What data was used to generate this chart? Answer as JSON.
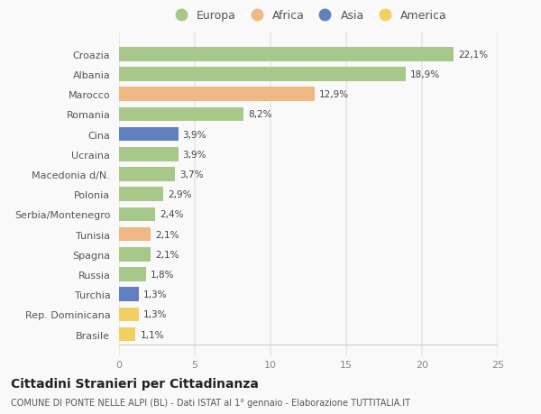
{
  "categories": [
    "Brasile",
    "Rep. Dominicana",
    "Turchia",
    "Russia",
    "Spagna",
    "Tunisia",
    "Serbia/Montenegro",
    "Polonia",
    "Macedonia d/N.",
    "Ucraina",
    "Cina",
    "Romania",
    "Marocco",
    "Albania",
    "Croazia"
  ],
  "values": [
    1.1,
    1.3,
    1.3,
    1.8,
    2.1,
    2.1,
    2.4,
    2.9,
    3.7,
    3.9,
    3.9,
    8.2,
    12.9,
    18.9,
    22.1
  ],
  "labels": [
    "1,1%",
    "1,3%",
    "1,3%",
    "1,8%",
    "2,1%",
    "2,1%",
    "2,4%",
    "2,9%",
    "3,7%",
    "3,9%",
    "3,9%",
    "8,2%",
    "12,9%",
    "18,9%",
    "22,1%"
  ],
  "continents": [
    "America",
    "America",
    "Asia",
    "Europa",
    "Europa",
    "Africa",
    "Europa",
    "Europa",
    "Europa",
    "Europa",
    "Asia",
    "Europa",
    "Africa",
    "Europa",
    "Europa"
  ],
  "colors": {
    "Europa": "#a8c88a",
    "Africa": "#f0b884",
    "Asia": "#6080c0",
    "America": "#f0d060"
  },
  "legend_order": [
    "Europa",
    "Africa",
    "Asia",
    "America"
  ],
  "xlim": [
    0,
    25
  ],
  "xticks": [
    0,
    5,
    10,
    15,
    20,
    25
  ],
  "title": "Cittadini Stranieri per Cittadinanza",
  "subtitle": "COMUNE DI PONTE NELLE ALPI (BL) - Dati ISTAT al 1° gennaio - Elaborazione TUTTITALIA.IT",
  "bg_color": "#f9f9f9",
  "grid_color": "#e8e8e8",
  "bar_height": 0.7
}
